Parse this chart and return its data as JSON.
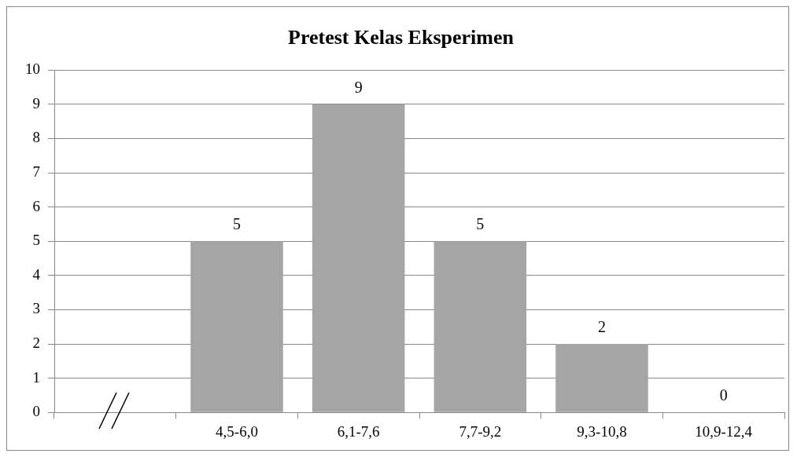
{
  "chart_data": {
    "type": "bar",
    "title": "Pretest Kelas Eksperimen",
    "categories": [
      null,
      "4,5-6,0",
      "6,1-7,6",
      "7,7-9,2",
      "9,3-10,8",
      "10,9-12,4"
    ],
    "values": [
      null,
      5,
      9,
      5,
      2,
      0
    ],
    "color": "#a5a5a5",
    "ylim": [
      0,
      10
    ],
    "yticks": [
      0,
      1,
      2,
      3,
      4,
      5,
      6,
      7,
      8,
      9,
      10
    ],
    "grid": "y",
    "legend": false,
    "data_labels": true
  }
}
